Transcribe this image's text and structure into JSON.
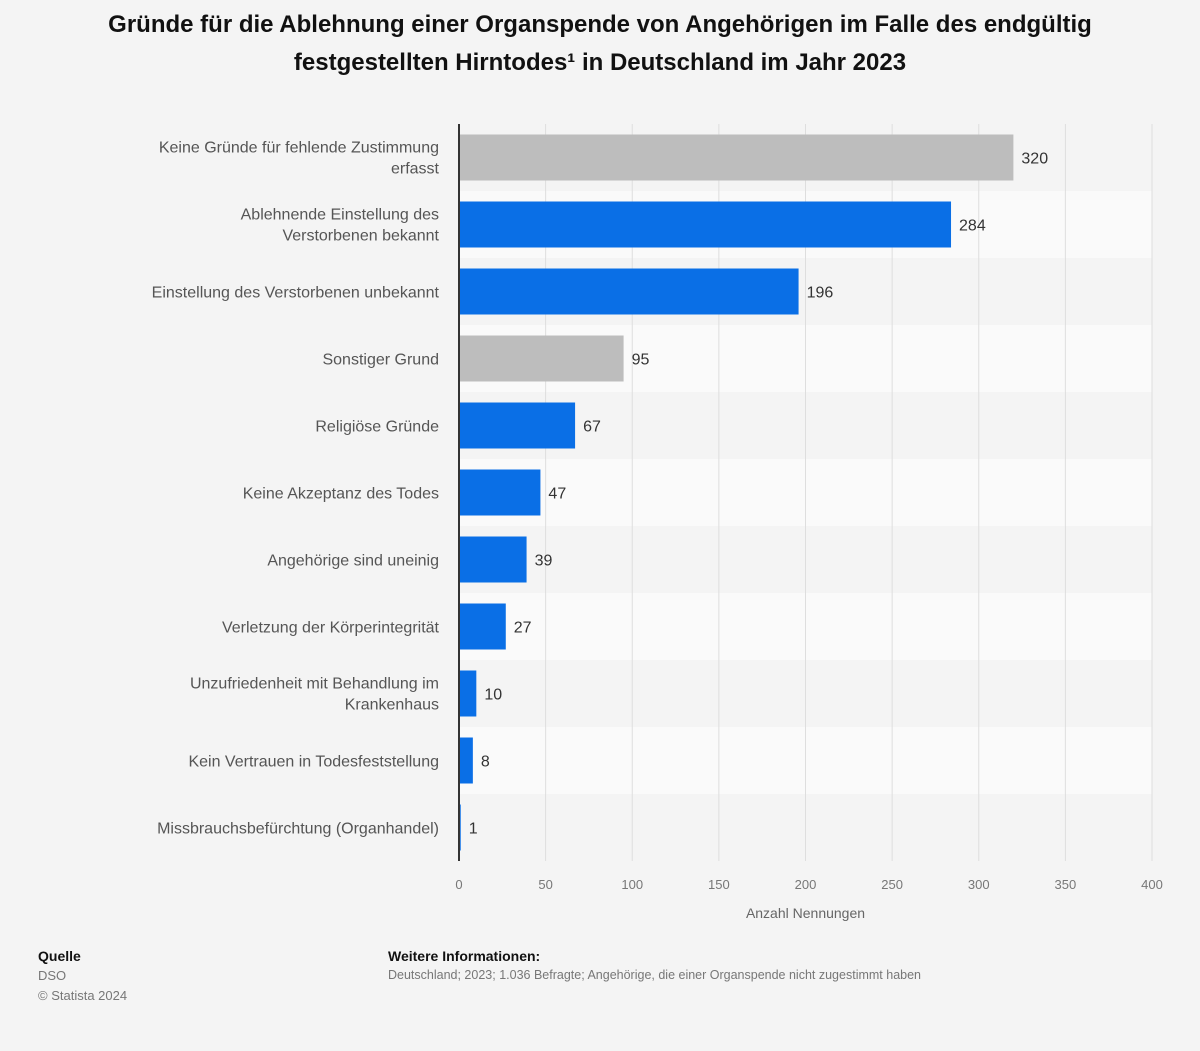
{
  "chart_data": {
    "type": "bar",
    "orientation": "horizontal",
    "title": "Gründe für die Ablehnung einer Organspende von Angehörigen im Falle des endgültig festgestellten Hirntodes¹ in Deutschland im Jahr 2023",
    "categories": [
      "Keine Gründe für fehlende Zustimmung erfasst",
      "Ablehnende Einstellung des Verstorbenen bekannt",
      "Einstellung des Verstorbenen unbekannt",
      "Sonstiger Grund",
      "Religiöse Gründe",
      "Keine Akzeptanz des Todes",
      "Angehörige sind uneinig",
      "Verletzung der Körperintegrität",
      "Unzufriedenheit mit Behandlung im Krankenhaus",
      "Kein Vertrauen in Todesfeststellung",
      "Missbrauchsbefürchtung (Organhandel)"
    ],
    "values": [
      320,
      284,
      196,
      95,
      67,
      47,
      39,
      27,
      10,
      8,
      1
    ],
    "bar_colors": [
      "#bdbdbd",
      "#0a6fe6",
      "#0a6fe6",
      "#bdbdbd",
      "#0a6fe6",
      "#0a6fe6",
      "#0a6fe6",
      "#0a6fe6",
      "#0a6fe6",
      "#0a6fe6",
      "#0a6fe6"
    ],
    "xlabel": "Anzahl Nennungen",
    "ylabel": "",
    "xlim": [
      0,
      400
    ],
    "xticks": [
      0,
      50,
      100,
      150,
      200,
      250,
      300,
      350,
      400
    ],
    "grid": true
  },
  "footer": {
    "source_heading": "Quelle",
    "source_name": "DSO",
    "copyright": "© Statista 2024",
    "info_heading": "Weitere Informationen:",
    "info_text": "Deutschland; 2023; 1.036 Befragte; Angehörige, die einer Organspende nicht zugestimmt haben"
  },
  "colors": {
    "bar_blue": "#0a6fe6",
    "bar_gray": "#bdbdbd",
    "background": "#f4f4f4",
    "band": "#fafafa"
  }
}
